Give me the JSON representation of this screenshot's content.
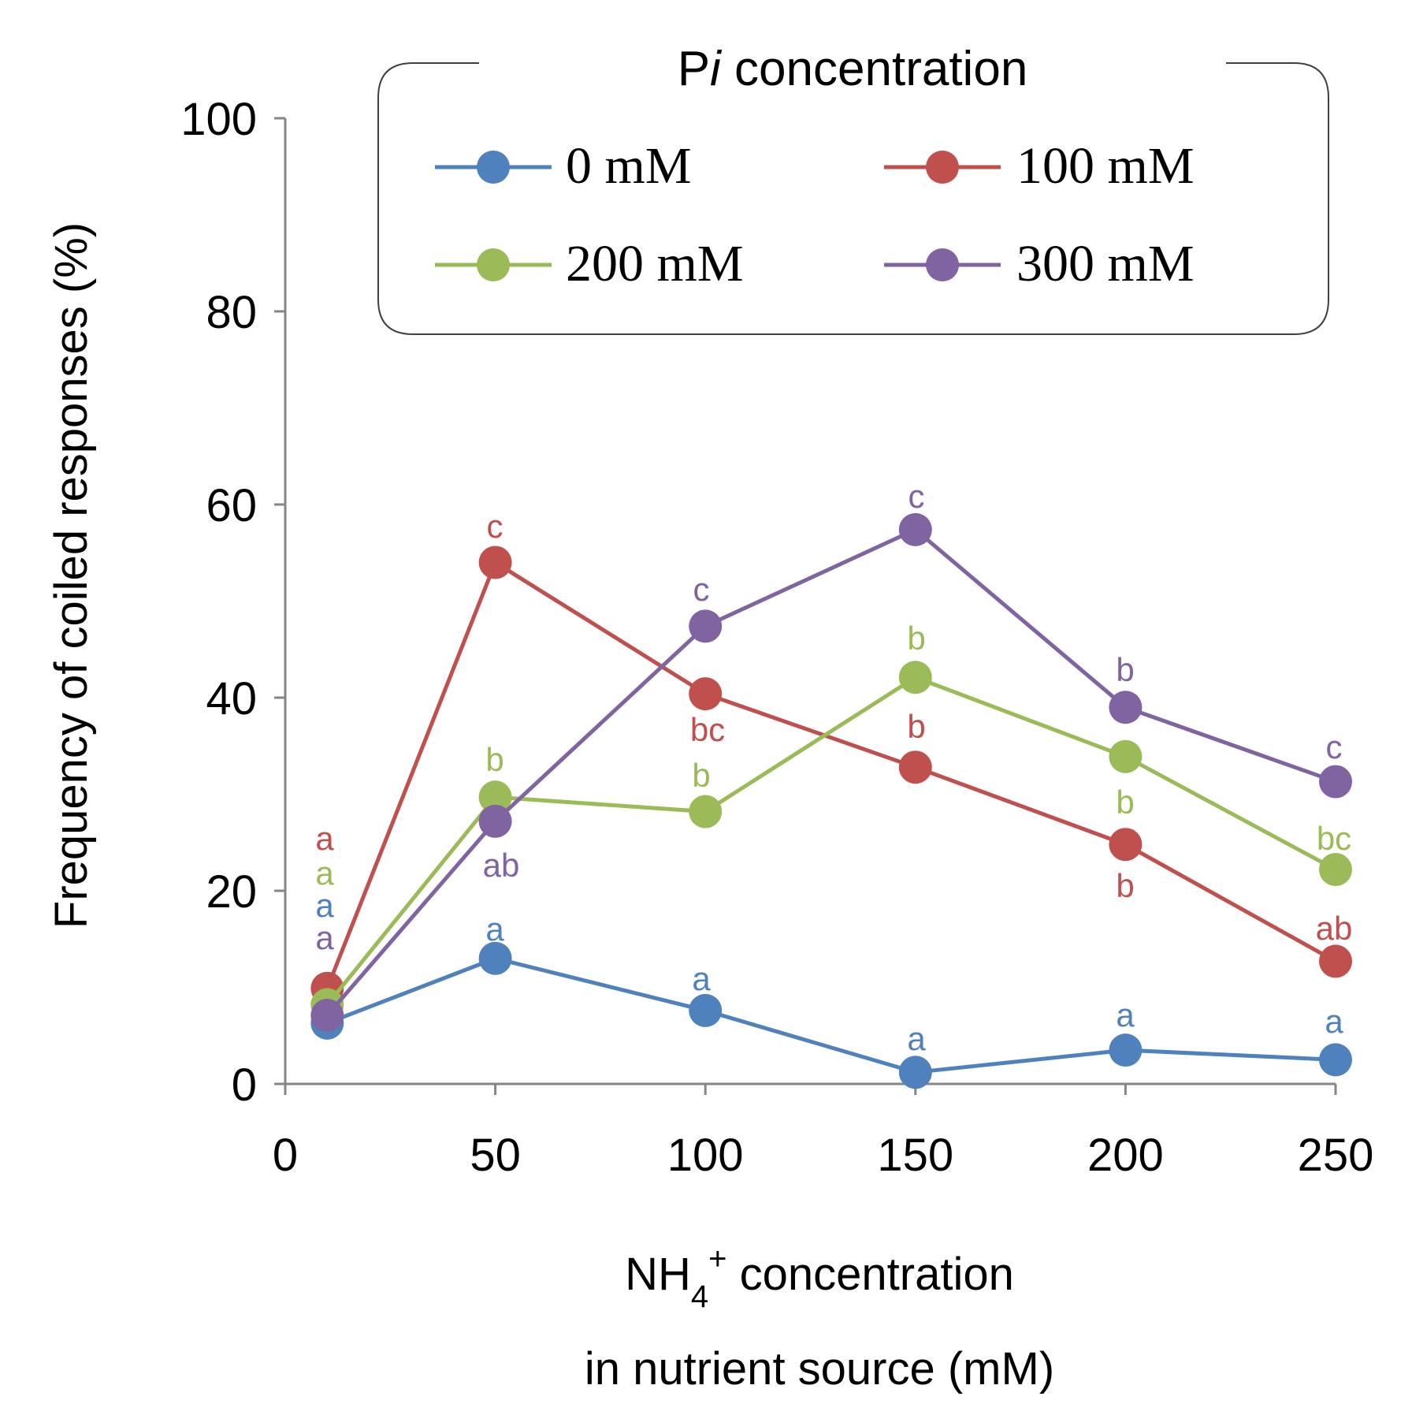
{
  "chart_data": {
    "type": "line",
    "title": "",
    "xlabel_line1_prefix": "NH",
    "xlabel_line1_sub": "4",
    "xlabel_line1_sup": "+",
    "xlabel_line1_suffix": " concentration",
    "xlabel_line2": "in  nutrient source (mM)",
    "ylabel": "Frequency of coiled responses (%)",
    "xlim": [
      0,
      250
    ],
    "ylim": [
      0,
      100
    ],
    "xticks": [
      "0",
      "50",
      "100",
      "150",
      "200",
      "250"
    ],
    "yticks": [
      "0",
      "20",
      "40",
      "60",
      "80",
      "100"
    ],
    "grid": false,
    "legend": {
      "title_prefix": "P",
      "title_italic": "i",
      "title_suffix": " concentration",
      "placement": "top-right"
    },
    "x": [
      10,
      50,
      100,
      150,
      200,
      250
    ],
    "series": [
      {
        "name": "0 mM",
        "color": "#4f81bd",
        "values": [
          6.3,
          13,
          7.6,
          1.2,
          3.5,
          2.5
        ],
        "letters": [
          "a",
          "a",
          "a",
          "a",
          "a",
          "a"
        ]
      },
      {
        "name": "100 mM",
        "color": "#c0504d",
        "values": [
          9.9,
          54,
          40.4,
          32.8,
          24.8,
          12.7
        ],
        "letters": [
          "a",
          "c",
          "bc",
          "b",
          "b",
          "ab"
        ]
      },
      {
        "name": "200 mM",
        "color": "#9bbb59",
        "values": [
          8.2,
          29.7,
          28.2,
          42.1,
          33.9,
          22.2
        ],
        "letters": [
          "a",
          "b",
          "b",
          "b",
          "b",
          "bc"
        ]
      },
      {
        "name": "300 mM",
        "color": "#8064a2",
        "values": [
          7.1,
          27.2,
          47.4,
          57.4,
          39,
          31.3
        ],
        "letters": [
          "a",
          "ab",
          "c",
          "c",
          "b",
          "c"
        ]
      }
    ]
  }
}
